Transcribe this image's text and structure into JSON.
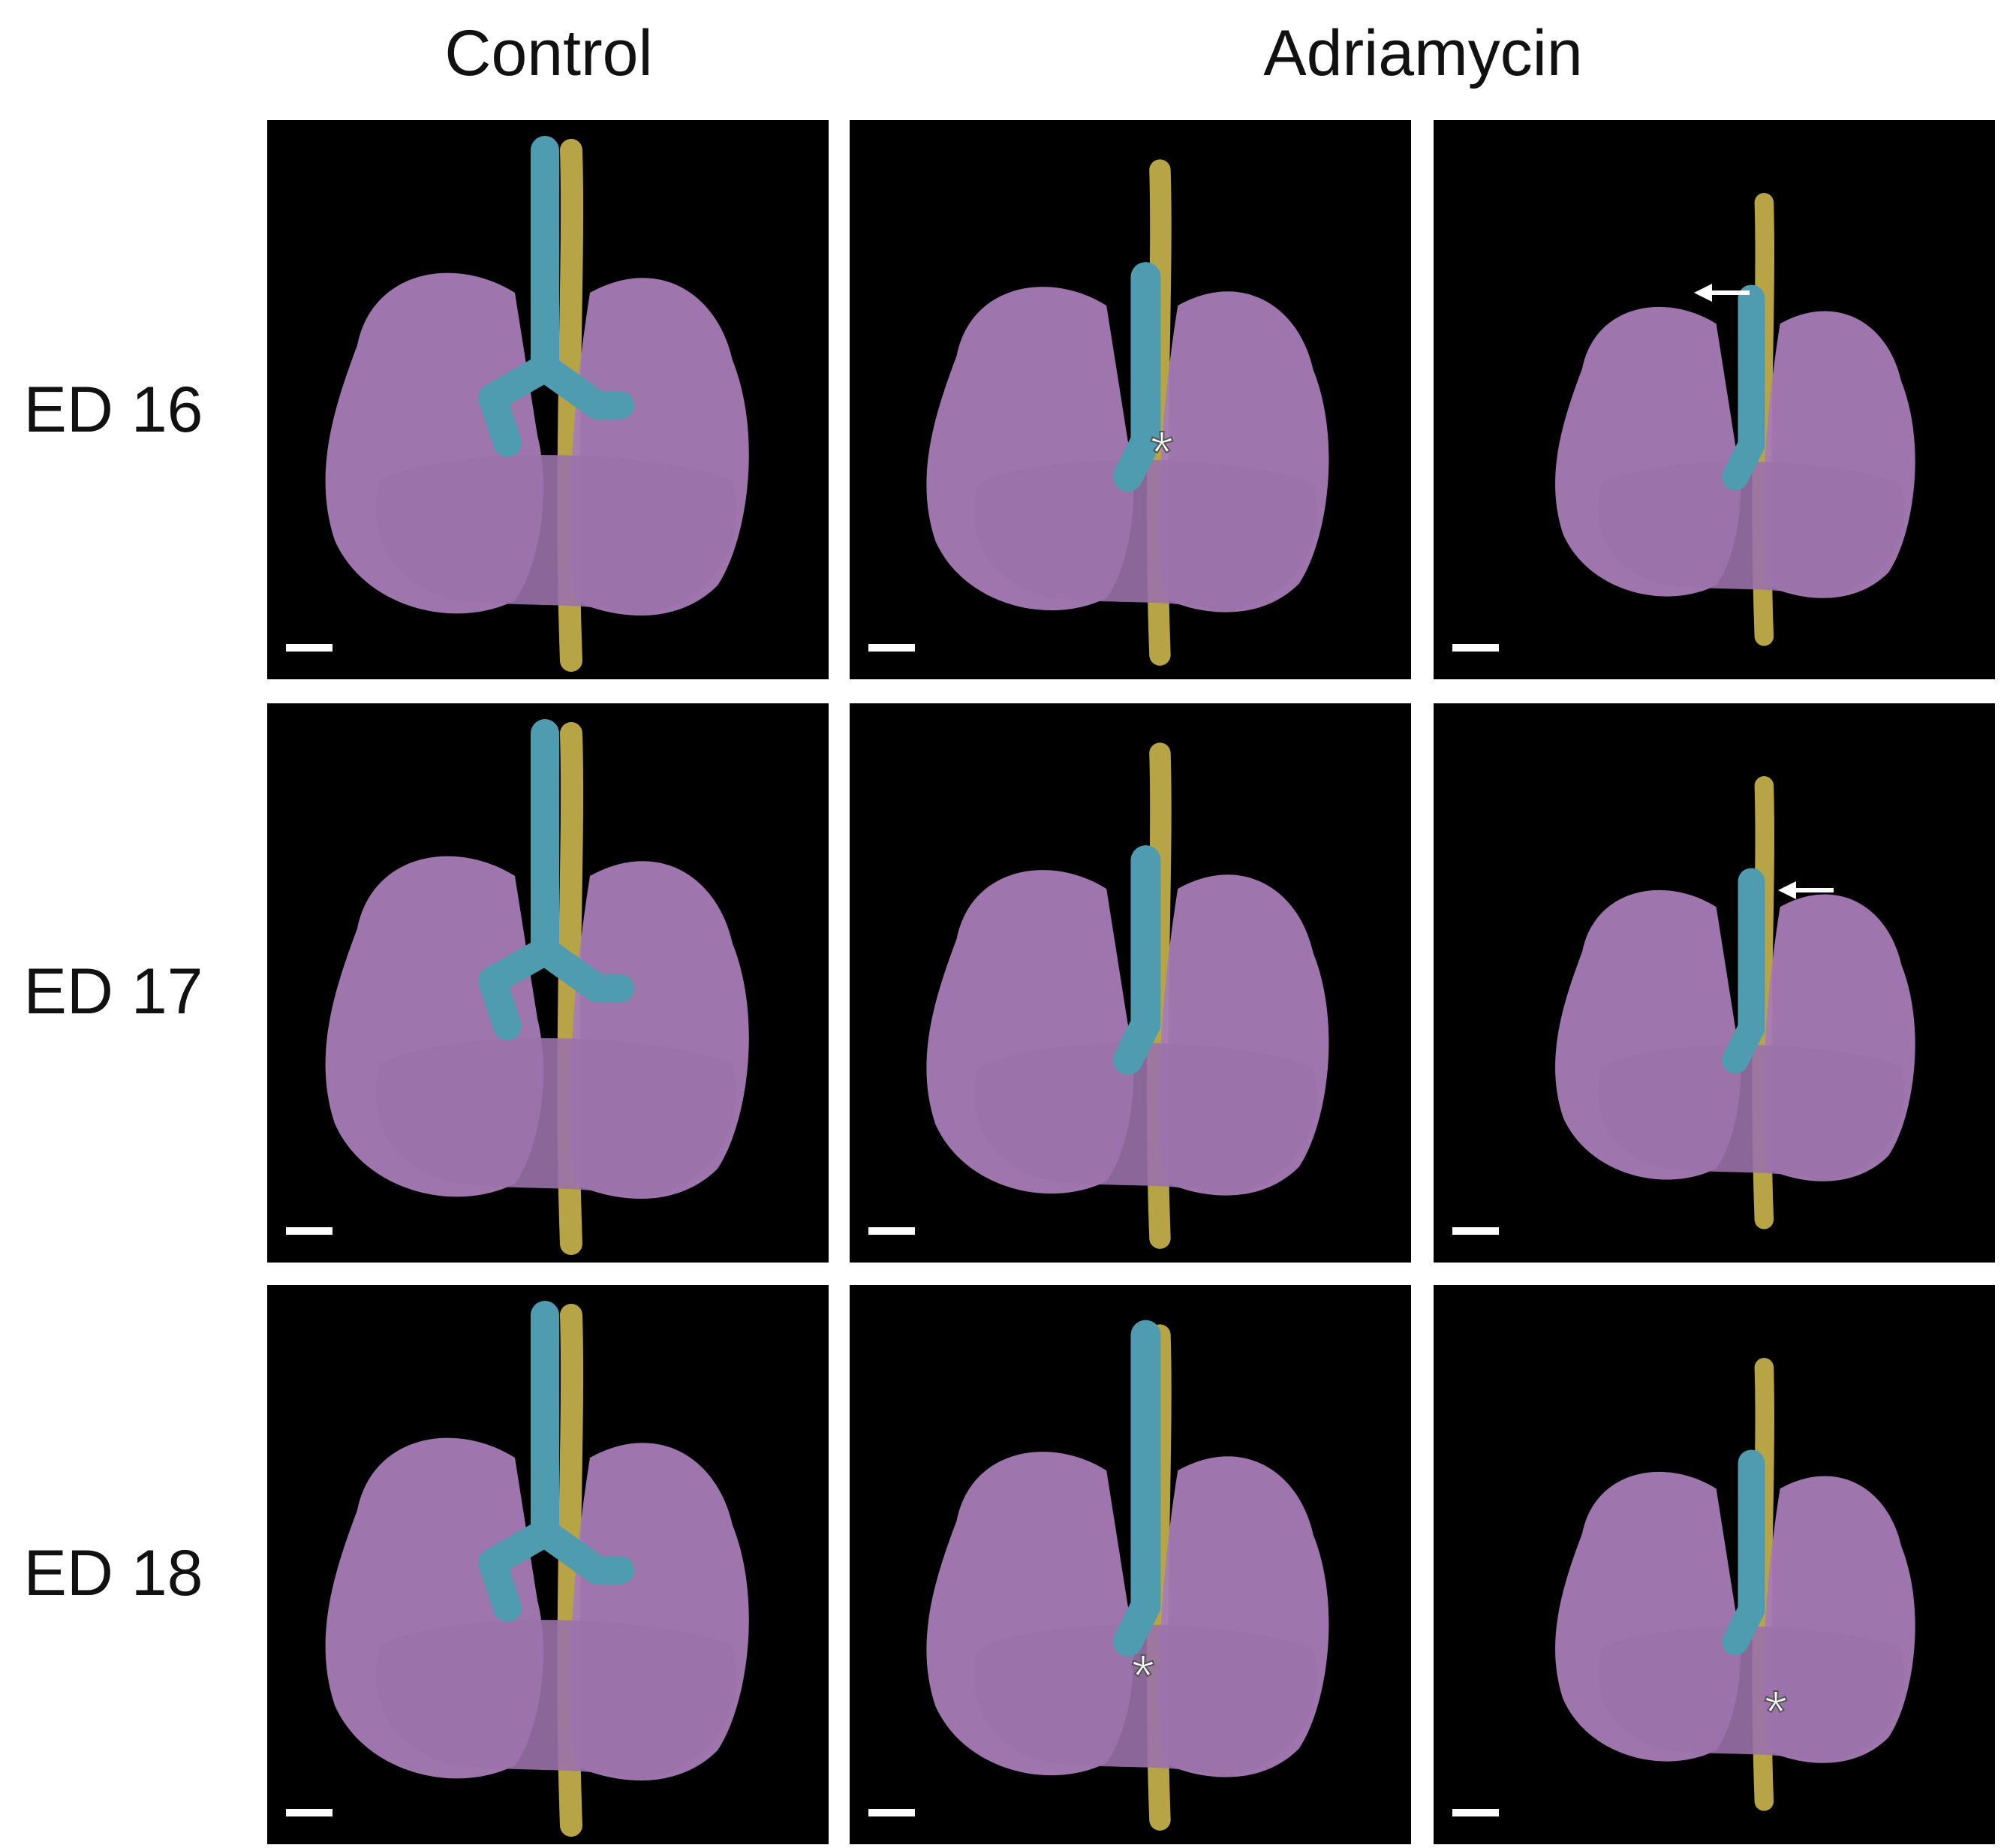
{
  "figure": {
    "column_headers": [
      "Control",
      "Adriamycin"
    ],
    "row_labels": [
      "ED 16",
      "ED 17",
      "ED 18"
    ],
    "annotations": [
      "*",
      "*",
      "*"
    ]
  }
}
